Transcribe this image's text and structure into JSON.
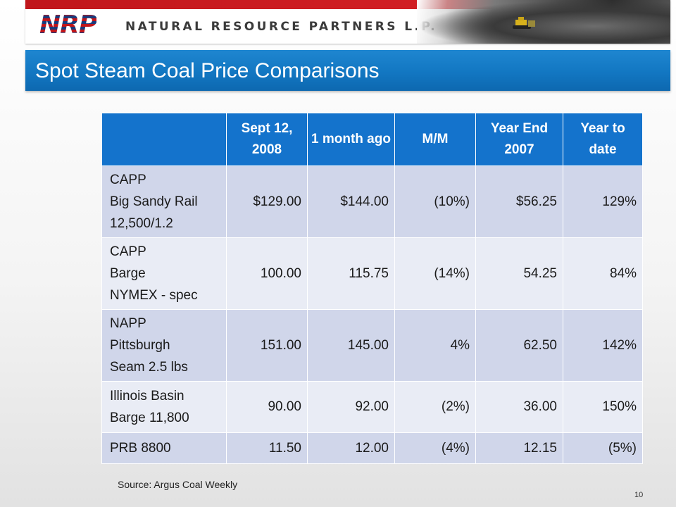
{
  "header": {
    "logo_text": "NRP",
    "company_name": "NATURAL RESOURCE PARTNERS L.P."
  },
  "slide": {
    "title": "Spot Steam Coal Price Comparisons",
    "source": "Source: Argus Coal Weekly",
    "page_number": "10"
  },
  "colors": {
    "header_red": "#c0161b",
    "title_blue": "#1277c2",
    "table_header_blue": "#1473cc",
    "row_dark": "#d0d6ea",
    "row_light": "#e9ecf5"
  },
  "table": {
    "columns": [
      "",
      "Sept 12, 2008",
      "1 month ago",
      "M/M",
      "Year End 2007",
      "Year to date"
    ],
    "rows": [
      {
        "label_lines": [
          "CAPP",
          "Big Sandy Rail",
          "12,500/1.2"
        ],
        "values": [
          "$129.00",
          "$144.00",
          "(10%)",
          "$56.25",
          "129%"
        ]
      },
      {
        "label_lines": [
          "CAPP",
          "Barge",
          "NYMEX - spec"
        ],
        "values": [
          "100.00",
          "115.75",
          "(14%)",
          "54.25",
          "84%"
        ]
      },
      {
        "label_lines": [
          "NAPP",
          "Pittsburgh",
          "Seam 2.5 lbs"
        ],
        "values": [
          "151.00",
          "145.00",
          "4%",
          "62.50",
          "142%"
        ]
      },
      {
        "label_lines": [
          "Illinois Basin",
          "Barge 11,800"
        ],
        "values": [
          "90.00",
          "92.00",
          "(2%)",
          "36.00",
          "150%"
        ]
      },
      {
        "label_lines": [
          "PRB 8800"
        ],
        "values": [
          "11.50",
          "12.00",
          "(4%)",
          "12.15",
          "(5%)"
        ]
      }
    ]
  }
}
